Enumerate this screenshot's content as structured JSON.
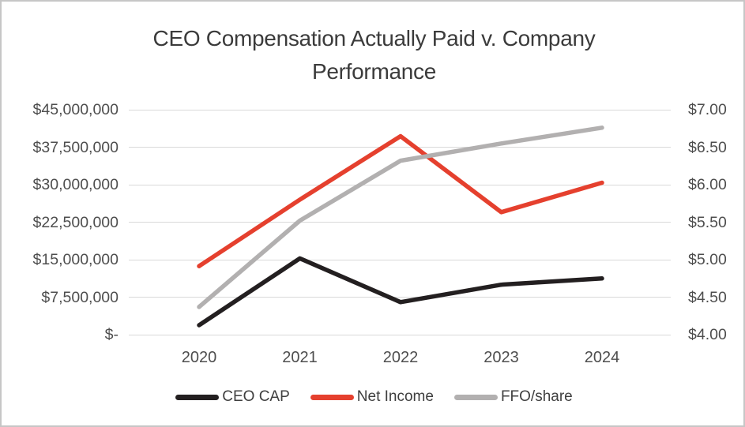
{
  "title": {
    "line1": "CEO Compensation Actually Paid v. Company",
    "line2": "Performance"
  },
  "chart_data": {
    "type": "line",
    "title": "CEO Compensation Actually Paid v. Company Performance",
    "categories": [
      "2020",
      "2021",
      "2022",
      "2023",
      "2024"
    ],
    "series": [
      {
        "name": "CEO CAP",
        "axis": "left",
        "color": "#231f20",
        "values": [
          1900000,
          15250000,
          6500000,
          10000000,
          11250000
        ]
      },
      {
        "name": "Net Income",
        "axis": "left",
        "color": "#e5402e",
        "values": [
          13700000,
          27000000,
          39700000,
          24500000,
          30400000
        ]
      },
      {
        "name": "FFO/share",
        "axis": "right",
        "color": "#b2b0b0",
        "values": [
          4.37,
          5.52,
          6.32,
          6.55,
          6.76
        ]
      }
    ],
    "left_axis": {
      "min": 0,
      "max": 45000000,
      "tick_labels_top_to_bottom": [
        "$45,000,000",
        "$37,500,000",
        "$30,000,000",
        "$22,500,000",
        "$15,000,000",
        "$7,500,000",
        "$-"
      ]
    },
    "right_axis": {
      "min": 4.0,
      "max": 7.0,
      "tick_labels_top_to_bottom": [
        "$7.00",
        "$6.50",
        "$6.00",
        "$5.50",
        "$5.00",
        "$4.50",
        "$4.00"
      ]
    },
    "legend": {
      "position": "bottom",
      "entries": [
        "CEO CAP",
        "Net Income",
        "FFO/share"
      ]
    },
    "grid": "horizontal-only",
    "colors": {
      "gridline": "#d9d9d9",
      "axis_text": "#4e4e4e",
      "title_text": "#3b3b3b",
      "border": "#c6c6c6"
    }
  }
}
